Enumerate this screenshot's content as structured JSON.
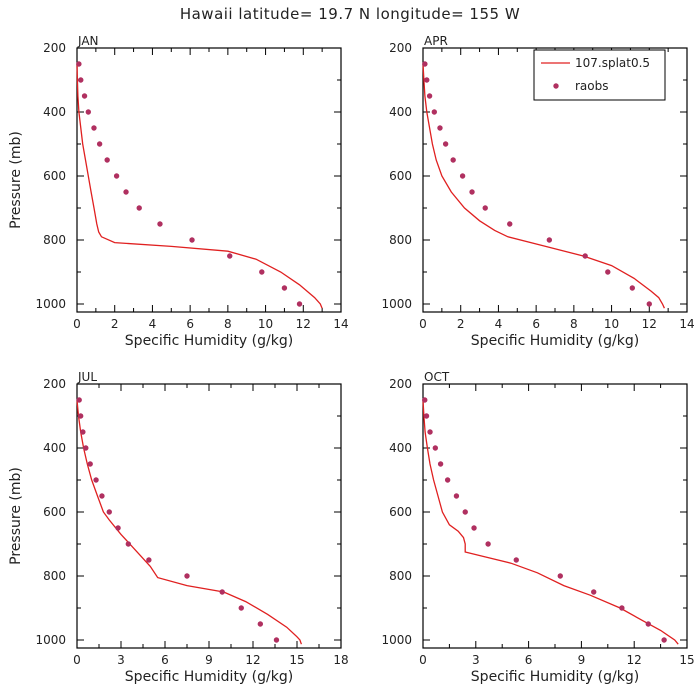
{
  "title": "Hawaii  latitude= 19.7 N longitude= 155 W",
  "colors": {
    "model": "#e02020",
    "obs": "#b03060",
    "axis": "#000000"
  },
  "legend": {
    "placement": "top-right of APR panel",
    "model_label": "107.splat0.5",
    "obs_label": "raobs"
  },
  "chart_data": [
    {
      "type": "line",
      "panel": "JAN",
      "xlabel": "Specific Humidity (g/kg)",
      "ylabel": "Pressure (mb)",
      "xlim": [
        0,
        14
      ],
      "ylim": [
        1025,
        200
      ],
      "xticks": [
        0,
        2,
        4,
        6,
        8,
        10,
        12,
        14
      ],
      "yticks": [
        200,
        400,
        600,
        800,
        1000
      ],
      "grid": false,
      "series": [
        {
          "name": "107.splat0.5",
          "kind": "line",
          "x": [
            0.0,
            0.02,
            0.05,
            0.1,
            0.2,
            0.3,
            0.45,
            0.6,
            0.75,
            0.9,
            1.05,
            1.15,
            1.3,
            2.0,
            5.0,
            8.0,
            9.5,
            10.8,
            11.8,
            12.6,
            12.9,
            13.0
          ],
          "y": [
            250,
            300,
            350,
            400,
            450,
            500,
            550,
            600,
            650,
            700,
            750,
            775,
            790,
            808,
            820,
            835,
            860,
            900,
            940,
            980,
            1000,
            1013
          ]
        },
        {
          "name": "raobs",
          "kind": "scatter",
          "x": [
            0.1,
            0.2,
            0.4,
            0.6,
            0.9,
            1.2,
            1.6,
            2.1,
            2.6,
            3.3,
            4.4,
            6.1,
            8.1,
            9.8,
            11.0,
            11.8
          ],
          "y": [
            250,
            300,
            350,
            400,
            450,
            500,
            550,
            600,
            650,
            700,
            750,
            800,
            850,
            900,
            950,
            1000
          ]
        }
      ]
    },
    {
      "type": "line",
      "panel": "APR",
      "xlabel": "Specific Humidity (g/kg)",
      "ylabel": "",
      "xlim": [
        0,
        14
      ],
      "ylim": [
        1025,
        200
      ],
      "xticks": [
        0,
        2,
        4,
        6,
        8,
        10,
        12,
        14
      ],
      "yticks": [
        200,
        400,
        600,
        800,
        1000
      ],
      "grid": false,
      "series": [
        {
          "name": "107.splat0.5",
          "kind": "line",
          "x": [
            0.0,
            0.05,
            0.1,
            0.2,
            0.35,
            0.5,
            0.7,
            1.0,
            1.5,
            2.2,
            3.0,
            3.8,
            4.5,
            6.5,
            8.5,
            10.0,
            11.2,
            12.1,
            12.5,
            12.7,
            12.8
          ],
          "y": [
            250,
            300,
            350,
            400,
            450,
            500,
            550,
            600,
            650,
            700,
            740,
            770,
            790,
            820,
            850,
            880,
            920,
            960,
            980,
            1000,
            1013
          ]
        },
        {
          "name": "raobs",
          "kind": "scatter",
          "x": [
            0.1,
            0.2,
            0.35,
            0.6,
            0.9,
            1.2,
            1.6,
            2.1,
            2.6,
            3.3,
            4.6,
            6.7,
            8.6,
            9.8,
            11.1,
            12.0
          ],
          "y": [
            250,
            300,
            350,
            400,
            450,
            500,
            550,
            600,
            650,
            700,
            750,
            800,
            850,
            900,
            950,
            1000
          ]
        }
      ]
    },
    {
      "type": "line",
      "panel": "JUL",
      "xlabel": "Specific Humidity (g/kg)",
      "ylabel": "Pressure (mb)",
      "xlim": [
        0,
        18
      ],
      "ylim": [
        1025,
        200
      ],
      "xticks": [
        0,
        3,
        6,
        9,
        12,
        15,
        18
      ],
      "yticks": [
        200,
        400,
        600,
        800,
        1000
      ],
      "grid": false,
      "series": [
        {
          "name": "107.splat0.5",
          "kind": "line",
          "x": [
            0.0,
            0.1,
            0.25,
            0.45,
            0.7,
            1.0,
            1.4,
            1.8,
            2.2,
            3.0,
            4.0,
            5.0,
            5.5,
            7.5,
            10.0,
            11.5,
            13.0,
            14.3,
            15.0,
            15.2,
            15.3
          ],
          "y": [
            250,
            300,
            350,
            400,
            450,
            500,
            550,
            600,
            625,
            670,
            720,
            770,
            805,
            830,
            850,
            880,
            920,
            960,
            990,
            1000,
            1013
          ]
        },
        {
          "name": "raobs",
          "kind": "scatter",
          "x": [
            0.15,
            0.25,
            0.4,
            0.6,
            0.9,
            1.3,
            1.7,
            2.2,
            2.8,
            3.5,
            4.9,
            7.5,
            9.9,
            11.2,
            12.5,
            13.6
          ],
          "y": [
            250,
            300,
            350,
            400,
            450,
            500,
            550,
            600,
            650,
            700,
            750,
            800,
            850,
            900,
            950,
            1000
          ]
        }
      ]
    },
    {
      "type": "line",
      "panel": "OCT",
      "xlabel": "Specific Humidity (g/kg)",
      "ylabel": "",
      "xlim": [
        0,
        15
      ],
      "ylim": [
        1025,
        200
      ],
      "xticks": [
        0,
        3,
        6,
        9,
        12,
        15
      ],
      "yticks": [
        200,
        400,
        600,
        800,
        1000
      ],
      "grid": false,
      "series": [
        {
          "name": "107.splat0.5",
          "kind": "line",
          "x": [
            0.0,
            0.05,
            0.12,
            0.25,
            0.4,
            0.6,
            0.85,
            1.1,
            1.5,
            2.0,
            2.3,
            2.4,
            2.4,
            3.5,
            5.0,
            6.5,
            8.0,
            9.5,
            11.2,
            12.5,
            13.5,
            14.3,
            14.5
          ],
          "y": [
            250,
            300,
            350,
            400,
            450,
            500,
            550,
            600,
            640,
            660,
            680,
            700,
            725,
            740,
            760,
            790,
            830,
            860,
            900,
            940,
            970,
            1000,
            1013
          ]
        },
        {
          "name": "raobs",
          "kind": "scatter",
          "x": [
            0.1,
            0.2,
            0.4,
            0.7,
            1.0,
            1.4,
            1.9,
            2.4,
            2.9,
            3.7,
            5.3,
            7.8,
            9.7,
            11.3,
            12.8,
            13.7
          ],
          "y": [
            250,
            300,
            350,
            400,
            450,
            500,
            550,
            600,
            650,
            700,
            750,
            800,
            850,
            900,
            950,
            1000
          ]
        }
      ]
    }
  ]
}
